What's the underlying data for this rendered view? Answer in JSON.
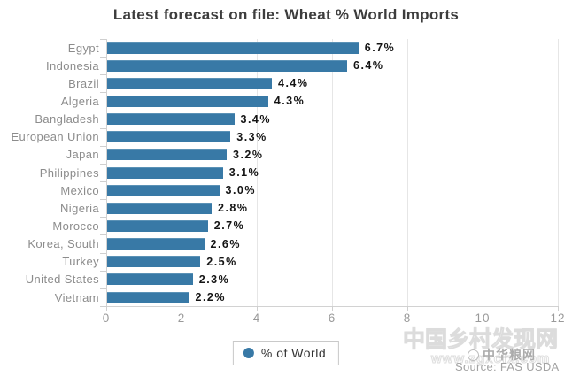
{
  "title": "Latest forecast on file: Wheat % World Imports",
  "chart_data": {
    "type": "bar",
    "orientation": "horizontal",
    "title": "Latest forecast on file: Wheat % World Imports",
    "categories": [
      "Egypt",
      "Indonesia",
      "Brazil",
      "Algeria",
      "Bangladesh",
      "European Union",
      "Japan",
      "Philippines",
      "Mexico",
      "Nigeria",
      "Morocco",
      "Korea, South",
      "Turkey",
      "United States",
      "Vietnam"
    ],
    "values": [
      6.7,
      6.4,
      4.4,
      4.3,
      3.4,
      3.3,
      3.2,
      3.1,
      3.0,
      2.8,
      2.7,
      2.6,
      2.5,
      2.3,
      2.2
    ],
    "value_labels": [
      "6.7%",
      "6.4%",
      "4.4%",
      "4.3%",
      "3.4%",
      "3.3%",
      "3.2%",
      "3.1%",
      "3.0%",
      "2.8%",
      "2.7%",
      "2.6%",
      "2.5%",
      "2.3%",
      "2.2%"
    ],
    "xlabel": "",
    "ylabel": "",
    "xlim": [
      0,
      12
    ],
    "x_ticks": [
      0,
      2,
      4,
      6,
      8,
      10,
      12
    ],
    "grid": "vertical",
    "legend_position": "bottom-center",
    "bar_color": "#3879a6"
  },
  "legend": {
    "label": "% of World"
  },
  "source": "Source: FAS USDA",
  "watermarks": {
    "large_text": "中国乡村发现网",
    "url_text": "www.zgxcfx.com",
    "grain_net_text": "中华粮网"
  },
  "colors": {
    "bar": "#3879a6",
    "title_text": "#3d3d3d",
    "category_text": "#8c8c8c",
    "value_text": "#141414",
    "axis": "#d2d2d2",
    "gridline": "#e6e6e6",
    "tick_label": "#9a9a9a"
  }
}
